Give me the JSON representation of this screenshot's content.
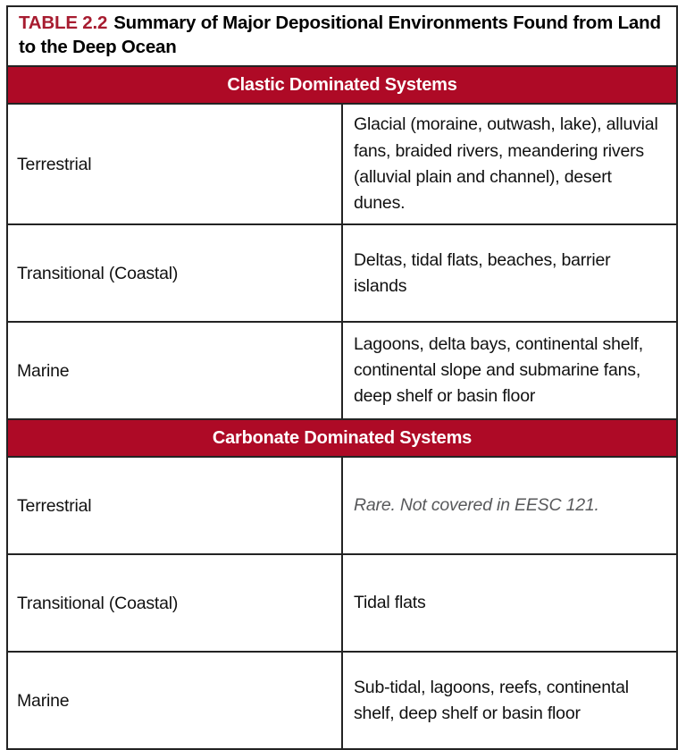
{
  "title": {
    "label": "TABLE 2.2",
    "text": "Summary of Major Depositional Environments Found from Land to the Deep Ocean"
  },
  "colors": {
    "band_red": "#AE0A26",
    "title_red": "#A71C30",
    "italic_gray": "#58595B",
    "border": "#232323"
  },
  "sections": [
    {
      "header": "Clastic Dominated Systems",
      "rows": [
        {
          "environment": "Terrestrial",
          "description": "Glacial (moraine, outwash, lake), alluvial fans, braided rivers, meandering rivers (alluvial plain and channel), desert dunes.",
          "italic": false
        },
        {
          "environment": "Transitional (Coastal)",
          "description": "Deltas, tidal flats, beaches, barrier islands",
          "italic": false
        },
        {
          "environment": "Marine",
          "description": "Lagoons, delta bays, continental shelf, continental slope and submarine fans, deep shelf or basin floor",
          "italic": false
        }
      ]
    },
    {
      "header": "Carbonate Dominated Systems",
      "rows": [
        {
          "environment": "Terrestrial",
          "description": "Rare. Not covered in EESC 121.",
          "italic": true
        },
        {
          "environment": "Transitional (Coastal)",
          "description": "Tidal flats",
          "italic": false
        },
        {
          "environment": "Marine",
          "description": "Sub-tidal, lagoons, reefs, continental shelf, deep shelf or basin floor",
          "italic": false
        }
      ]
    }
  ]
}
